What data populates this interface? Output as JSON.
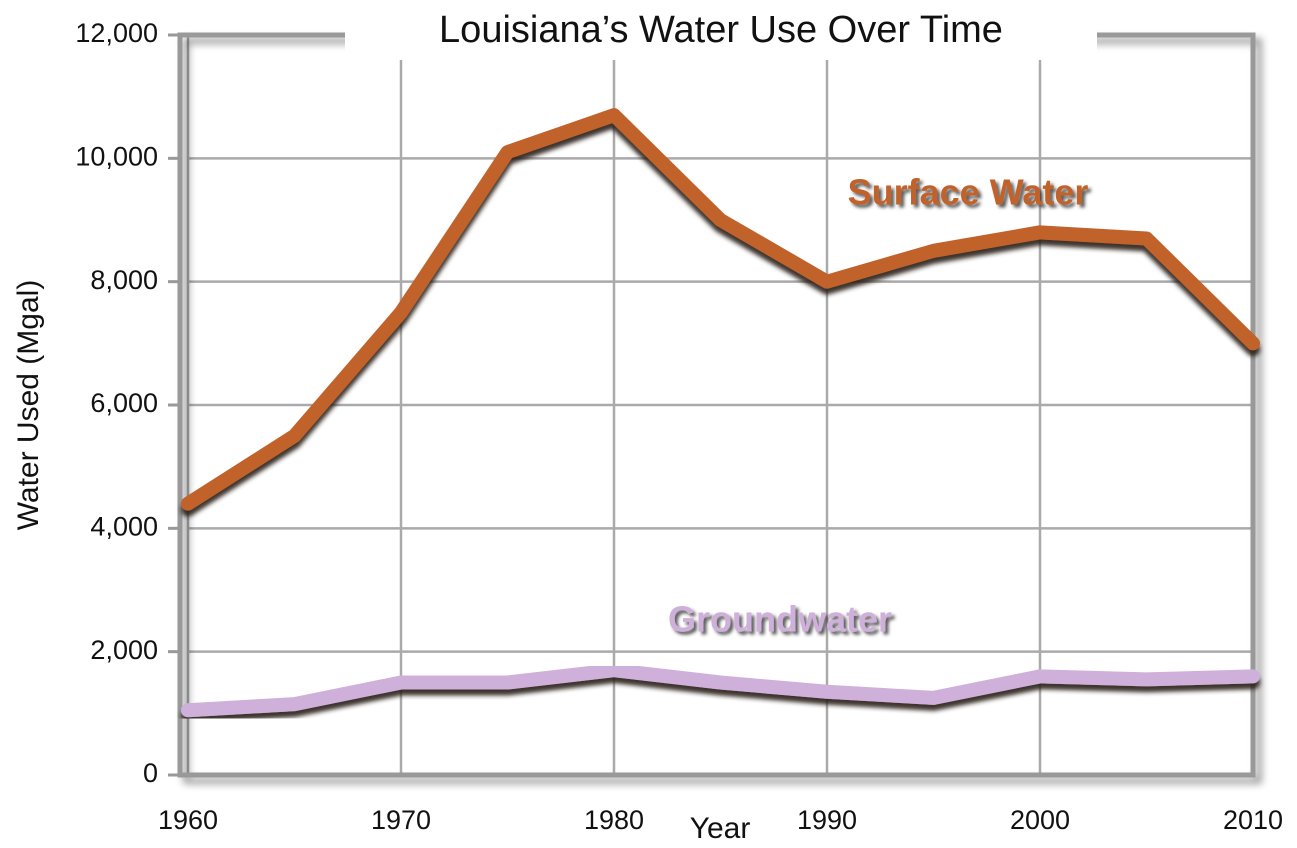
{
  "chart_data": {
    "type": "line",
    "title": "Louisiana’s Water Use Over Time",
    "x_label": "Year",
    "y_label": "Water Used (Mgal)",
    "x": [
      1960,
      1965,
      1970,
      1975,
      1980,
      1985,
      1990,
      1995,
      2000,
      2005,
      2010
    ],
    "series": [
      {
        "name": "Surface Water",
        "color": "#c0622b",
        "values": [
          4400,
          5500,
          7500,
          10100,
          10700,
          9000,
          8000,
          8500,
          8800,
          8700,
          7000
        ]
      },
      {
        "name": "Groundwater",
        "color": "#cfb0da",
        "values": [
          1050,
          1150,
          1500,
          1500,
          1700,
          1500,
          1350,
          1250,
          1600,
          1550,
          1600
        ]
      }
    ],
    "xlim": [
      1960,
      2010
    ],
    "xticks": [
      1960,
      1970,
      1980,
      1990,
      2000,
      2010
    ],
    "ylim": [
      0,
      12000
    ],
    "yticks": [
      0,
      {
        "value": 2000,
        "label": "2,000"
      },
      {
        "value": 4000,
        "label": "4,000"
      },
      {
        "value": 6000,
        "label": "6,000"
      },
      {
        "value": 8000,
        "label": "8,000"
      },
      {
        "value": 10000,
        "label": "10,000"
      },
      {
        "value": 12000,
        "label": "12,000"
      }
    ],
    "grid": true
  }
}
